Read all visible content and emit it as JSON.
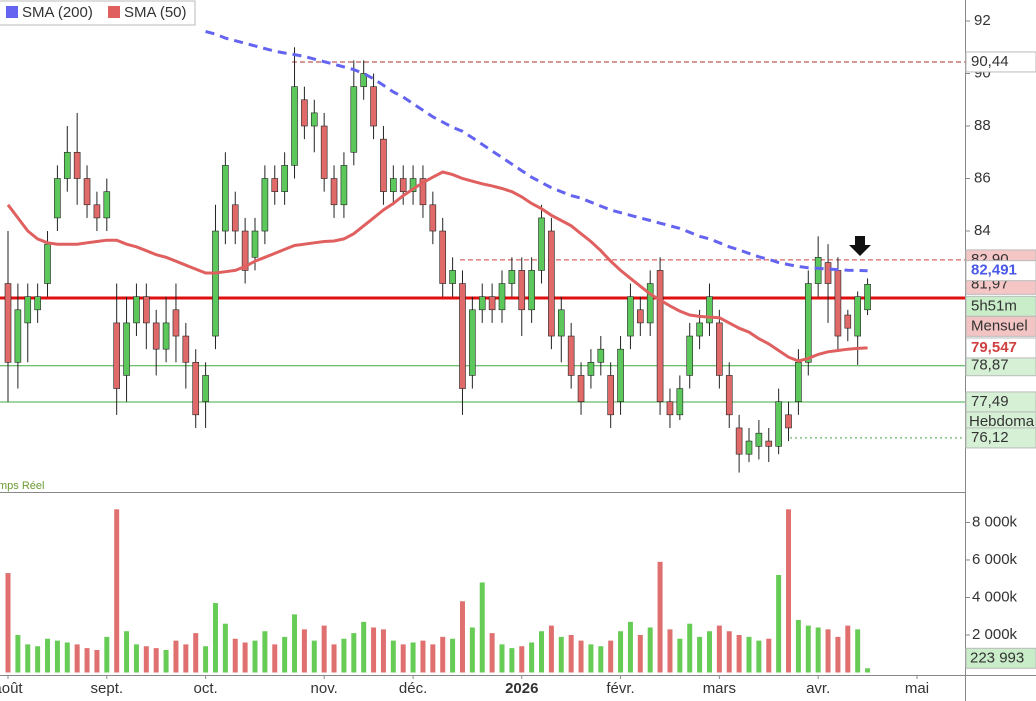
{
  "chart_data": [
    {
      "type": "candlestick",
      "open": [
        82,
        79,
        80.5,
        81,
        82,
        84.5,
        86,
        87,
        86,
        85,
        84.5,
        80.5,
        78.5,
        80.5,
        81.5,
        80.5,
        79.5,
        81,
        80,
        79,
        77.5,
        80,
        84,
        85,
        84,
        83,
        84,
        86,
        85.5,
        86.5,
        89,
        88,
        88,
        86,
        85,
        87,
        89.5,
        89.5,
        87.5,
        85.5,
        86,
        85.5,
        86,
        85,
        84,
        82,
        82,
        78.5,
        81,
        81.5,
        81,
        82,
        82.5,
        81,
        82.5,
        84,
        80,
        80,
        78.5,
        78.5,
        79,
        78.5,
        77.5,
        80,
        81,
        80.5,
        82.5,
        77.5,
        77,
        78.5,
        80,
        80.5,
        80.5,
        78.5,
        76.5,
        75.5,
        75.8,
        76,
        75.8,
        77,
        77.5,
        79,
        82,
        82.8,
        82.5,
        80.8,
        80,
        81,
        null,
        null,
        null,
        null,
        null
      ],
      "high": [
        84,
        82,
        82,
        82,
        84,
        86.5,
        88,
        88.5,
        86.5,
        85.5,
        86,
        82,
        81.5,
        82,
        82,
        81,
        81.5,
        82,
        80.5,
        79.5,
        79,
        85,
        87,
        85.5,
        84.5,
        84.5,
        86.5,
        86.5,
        87,
        91,
        89.5,
        89,
        88.5,
        86.5,
        87,
        90.5,
        90.5,
        90,
        88,
        86.5,
        86.5,
        86.5,
        86.5,
        85.5,
        84.5,
        83,
        82.5,
        81.5,
        82,
        82,
        82.5,
        83,
        83,
        83,
        85,
        84.5,
        81.5,
        80.5,
        79,
        79.5,
        80,
        79,
        80,
        82,
        81.5,
        82.5,
        83,
        78,
        78.5,
        80.5,
        81,
        82,
        81,
        79,
        77,
        76.5,
        76.8,
        76.5,
        78,
        77.5,
        79.5,
        82.5,
        83.8,
        83.5,
        83,
        81,
        81.7,
        82.2,
        null,
        null,
        null,
        null,
        null
      ],
      "low": [
        77.5,
        78,
        79,
        80.5,
        81.5,
        84,
        85.5,
        85,
        84.5,
        84,
        84,
        77,
        77.5,
        80,
        79.5,
        78.5,
        79,
        79,
        78,
        76.5,
        76.5,
        79.5,
        83.5,
        83.5,
        82,
        82.5,
        83.5,
        85,
        85,
        86,
        87.5,
        87,
        85.5,
        84.5,
        84.5,
        86.5,
        89,
        87.5,
        85,
        85,
        85,
        85,
        84.5,
        83.5,
        81.5,
        81.5,
        77,
        78,
        80.5,
        80.5,
        80.5,
        81.5,
        80,
        80.5,
        82,
        79.5,
        79,
        78,
        77,
        78,
        78.5,
        76.5,
        77,
        79.5,
        80,
        80,
        77,
        76.5,
        76.8,
        78,
        79.5,
        80,
        78,
        76.5,
        74.8,
        75.2,
        75.3,
        75.2,
        75.5,
        76,
        77,
        78.5,
        81.5,
        80.5,
        79.5,
        79.8,
        78.9,
        80.8,
        null,
        null,
        null,
        null,
        null
      ],
      "close": [
        79,
        81,
        81.5,
        81.5,
        83.5,
        86,
        87,
        86,
        85,
        84.5,
        85.5,
        78,
        80.5,
        81.5,
        80.5,
        79.5,
        80.5,
        80,
        79,
        77,
        78.5,
        84,
        86.5,
        84,
        82.5,
        84,
        86,
        85.5,
        86.5,
        89.5,
        88,
        88.5,
        86,
        85,
        86.5,
        89.5,
        90,
        88,
        85.5,
        86,
        85.5,
        86,
        85,
        84,
        82,
        82.5,
        78,
        81,
        81.5,
        81,
        82,
        82.5,
        81,
        82.5,
        84.5,
        80,
        81,
        78.5,
        77.5,
        79,
        79.5,
        77,
        79.5,
        81.5,
        80.5,
        82,
        77.5,
        77,
        78,
        80,
        80.5,
        81.5,
        78.5,
        77,
        75.5,
        76,
        76.3,
        75.8,
        77.5,
        76.5,
        79,
        82,
        83,
        82,
        80,
        80.3,
        81.5,
        81.97,
        null,
        null,
        null,
        null,
        null
      ],
      "up_color": "#5cc85c",
      "down_color": "#e06a6a",
      "series": [
        {
          "name": "SMA (200)",
          "color": "#6464f0",
          "style": "dashed",
          "values": [
            null,
            null,
            null,
            null,
            null,
            null,
            null,
            null,
            null,
            null,
            null,
            null,
            null,
            null,
            null,
            null,
            null,
            null,
            null,
            null,
            91.6,
            91.5,
            91.35,
            91.25,
            91.15,
            91.05,
            90.95,
            90.85,
            90.78,
            90.72,
            90.65,
            90.55,
            90.45,
            90.35,
            90.25,
            90.15,
            90.0,
            89.8,
            89.55,
            89.3,
            89.1,
            88.85,
            88.6,
            88.35,
            88.15,
            87.95,
            87.8,
            87.55,
            87.3,
            87.05,
            86.8,
            86.55,
            86.3,
            86.05,
            85.85,
            85.65,
            85.5,
            85.35,
            85.25,
            85.1,
            84.95,
            84.8,
            84.7,
            84.6,
            84.5,
            84.4,
            84.3,
            84.2,
            84.1,
            83.95,
            83.8,
            83.7,
            83.55,
            83.4,
            83.28,
            83.15,
            83.02,
            82.92,
            82.8,
            82.72,
            82.65,
            82.6,
            82.58,
            82.55,
            82.53,
            82.51,
            82.5,
            82.491,
            null,
            null,
            null,
            null,
            null
          ]
        },
        {
          "name": "SMA (50)",
          "color": "#e06060",
          "style": "solid",
          "values": [
            85.0,
            84.5,
            84.0,
            83.7,
            83.55,
            83.5,
            83.5,
            83.5,
            83.55,
            83.6,
            83.65,
            83.65,
            83.5,
            83.4,
            83.25,
            83.1,
            83.0,
            82.85,
            82.7,
            82.55,
            82.4,
            82.4,
            82.45,
            82.5,
            82.65,
            82.85,
            83.0,
            83.15,
            83.3,
            83.45,
            83.5,
            83.55,
            83.6,
            83.62,
            83.7,
            83.9,
            84.2,
            84.5,
            84.8,
            85.05,
            85.35,
            85.6,
            85.85,
            86.05,
            86.25,
            86.15,
            86.0,
            85.9,
            85.8,
            85.72,
            85.62,
            85.5,
            85.3,
            85.05,
            84.85,
            84.6,
            84.4,
            84.2,
            83.9,
            83.6,
            83.25,
            82.85,
            82.5,
            82.2,
            81.9,
            81.6,
            81.37,
            81.15,
            80.95,
            80.8,
            80.75,
            80.72,
            80.7,
            80.5,
            80.3,
            80.15,
            79.9,
            79.7,
            79.45,
            79.2,
            79.05,
            79.15,
            79.3,
            79.4,
            79.45,
            79.5,
            79.53,
            79.547,
            null,
            null,
            null,
            null,
            null
          ]
        }
      ],
      "ylim": [
        74.06,
        92.8
      ],
      "yticks": [
        84,
        86,
        88,
        90,
        92
      ],
      "levels": [
        {
          "value": 90.44,
          "label": "90,44",
          "color": "#b03030",
          "style": "dashed",
          "tag_bg": "#ffffff"
        },
        {
          "value": 82.9,
          "label": "82,90",
          "color": "#d04040",
          "style": "dashed",
          "tag_bg": "#f4c6c6"
        },
        {
          "value": 81.45,
          "color": "#e01010",
          "style": "thick"
        },
        {
          "value": 78.87,
          "label": "78,87",
          "color": "#40a840",
          "style": "solid",
          "tag_bg": "#d6f0d6"
        },
        {
          "value": 77.49,
          "label": "77,49",
          "sublabel": "Hebdoma",
          "color": "#40a840",
          "style": "solid",
          "tag_bg": "#d6f0d6"
        },
        {
          "value": 76.12,
          "label": "76,12",
          "color": "#40a840",
          "style": "dotted",
          "tag_bg": "#d6f0d6"
        }
      ],
      "tags": [
        {
          "value": 81.97,
          "label": "81,97",
          "color": "#333333",
          "tag_bg": "#f4c6c6",
          "sublabels": [
            "5h51m",
            "Mensuel"
          ]
        },
        {
          "value": 82.491,
          "label": "82,491",
          "color": "#4a5ae8",
          "tag_bg": "#ffffff"
        },
        {
          "value": 79.547,
          "label": "79,547",
          "color": "#d04040",
          "tag_bg": "#ffffff"
        }
      ],
      "note": "mps Réel"
    },
    {
      "type": "bar",
      "categories": [
        "août",
        null,
        null,
        null,
        null,
        null,
        null,
        null,
        null,
        null,
        "sept.",
        null,
        null,
        null,
        null,
        null,
        null,
        null,
        null,
        null,
        "oct.",
        null,
        null,
        null,
        null,
        null,
        null,
        null,
        null,
        null,
        null,
        null,
        "nov.",
        null,
        null,
        null,
        null,
        null,
        null,
        null,
        null,
        "déc.",
        null,
        null,
        null,
        null,
        null,
        null,
        null,
        null,
        null,
        null,
        "2026",
        null,
        null,
        null,
        null,
        null,
        null,
        null,
        null,
        null,
        "févr.",
        null,
        null,
        null,
        null,
        null,
        null,
        null,
        null,
        null,
        "mars",
        null,
        null,
        null,
        null,
        null,
        null,
        null,
        null,
        null,
        "avr.",
        null,
        null,
        null,
        null,
        null,
        null,
        null,
        null,
        null,
        "mai"
      ],
      "values": [
        5300,
        2000,
        1500,
        1400,
        1800,
        1700,
        1600,
        1500,
        1300,
        1200,
        1900,
        8700,
        2200,
        1500,
        1400,
        1300,
        1200,
        1700,
        1500,
        2100,
        1400,
        3700,
        2600,
        1800,
        1600,
        1700,
        2200,
        1500,
        1900,
        3100,
        2300,
        1700,
        2500,
        1500,
        1800,
        2100,
        2700,
        2400,
        2300,
        1700,
        1500,
        1600,
        1700,
        1500,
        1900,
        1800,
        3800,
        2400,
        4800,
        2100,
        1500,
        1300,
        1400,
        1600,
        2200,
        2500,
        1900,
        2000,
        1700,
        1500,
        1400,
        1700,
        2200,
        2700,
        2000,
        2400,
        5900,
        2300,
        1800,
        2600,
        1900,
        2200,
        2500,
        2200,
        2000,
        1900,
        1700,
        1800,
        5200,
        8700,
        2800,
        2500,
        2400,
        2300,
        1900,
        2500,
        2300,
        223.993,
        null,
        null,
        null,
        null,
        null
      ],
      "last_tag": {
        "value": 223.993,
        "label": "223 993"
      },
      "up_color": "#66cc55",
      "down_color": "#e07070",
      "ylim": [
        0,
        9570
      ],
      "yticks": [
        {
          "value": 2000,
          "label": "2 000k"
        },
        {
          "value": 4000,
          "label": "4 000k"
        },
        {
          "value": 6000,
          "label": "6 000k"
        },
        {
          "value": 8000,
          "label": "8 000k"
        }
      ]
    }
  ]
}
